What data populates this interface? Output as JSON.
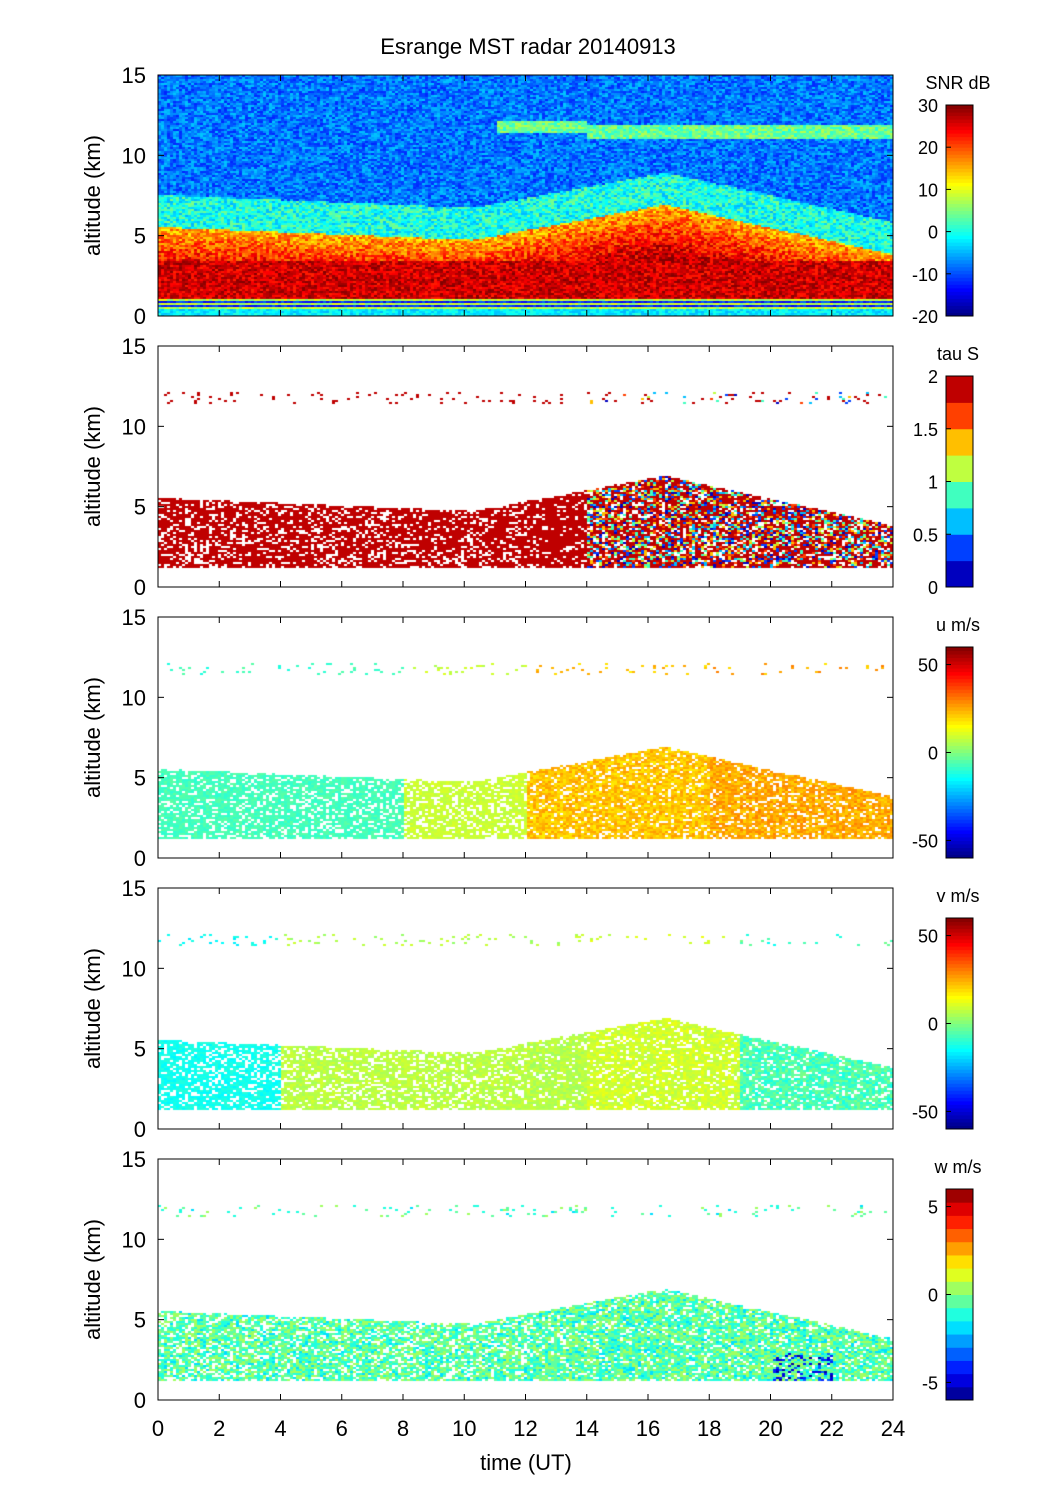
{
  "chart_data": {
    "type": "heatmap",
    "title": "Esrange MST radar 20140913",
    "xlabel": "time (UT)",
    "xlim": [
      0,
      24
    ],
    "xticks": [
      0,
      2,
      4,
      6,
      8,
      10,
      12,
      14,
      16,
      18,
      20,
      22,
      24
    ],
    "panels": [
      {
        "ylabel": "altitude (km)",
        "ylim": [
          0,
          15
        ],
        "yticks": [
          0,
          5,
          10,
          15
        ],
        "colorbar_label": "SNR dB",
        "clim": [
          -20,
          30
        ],
        "cticks": [
          30,
          20,
          10,
          0,
          -10,
          -20
        ],
        "levels": 0
      },
      {
        "ylabel": "altitude (km)",
        "ylim": [
          0,
          15
        ],
        "yticks": [
          0,
          5,
          10,
          15
        ],
        "colorbar_label": "tau S",
        "clim": [
          0,
          2
        ],
        "cticks": [
          2,
          1.5,
          1,
          0.5,
          0
        ],
        "levels": 8
      },
      {
        "ylabel": "altitude (km)",
        "ylim": [
          0,
          15
        ],
        "yticks": [
          0,
          5,
          10,
          15
        ],
        "colorbar_label": "u m/s",
        "clim": [
          -60,
          60
        ],
        "cticks": [
          50,
          0,
          -50
        ],
        "levels": 0
      },
      {
        "ylabel": "altitude (km)",
        "ylim": [
          0,
          15
        ],
        "yticks": [
          0,
          5,
          10,
          15
        ],
        "colorbar_label": "v m/s",
        "clim": [
          -60,
          60
        ],
        "cticks": [
          50,
          0,
          -50
        ],
        "levels": 0
      },
      {
        "ylabel": "altitude (km)",
        "ylim": [
          0,
          15
        ],
        "yticks": [
          0,
          5,
          10,
          15
        ],
        "colorbar_label": "w m/s",
        "clim": [
          -6,
          6
        ],
        "cticks": [
          5,
          0,
          -5
        ],
        "levels": 16
      }
    ]
  }
}
